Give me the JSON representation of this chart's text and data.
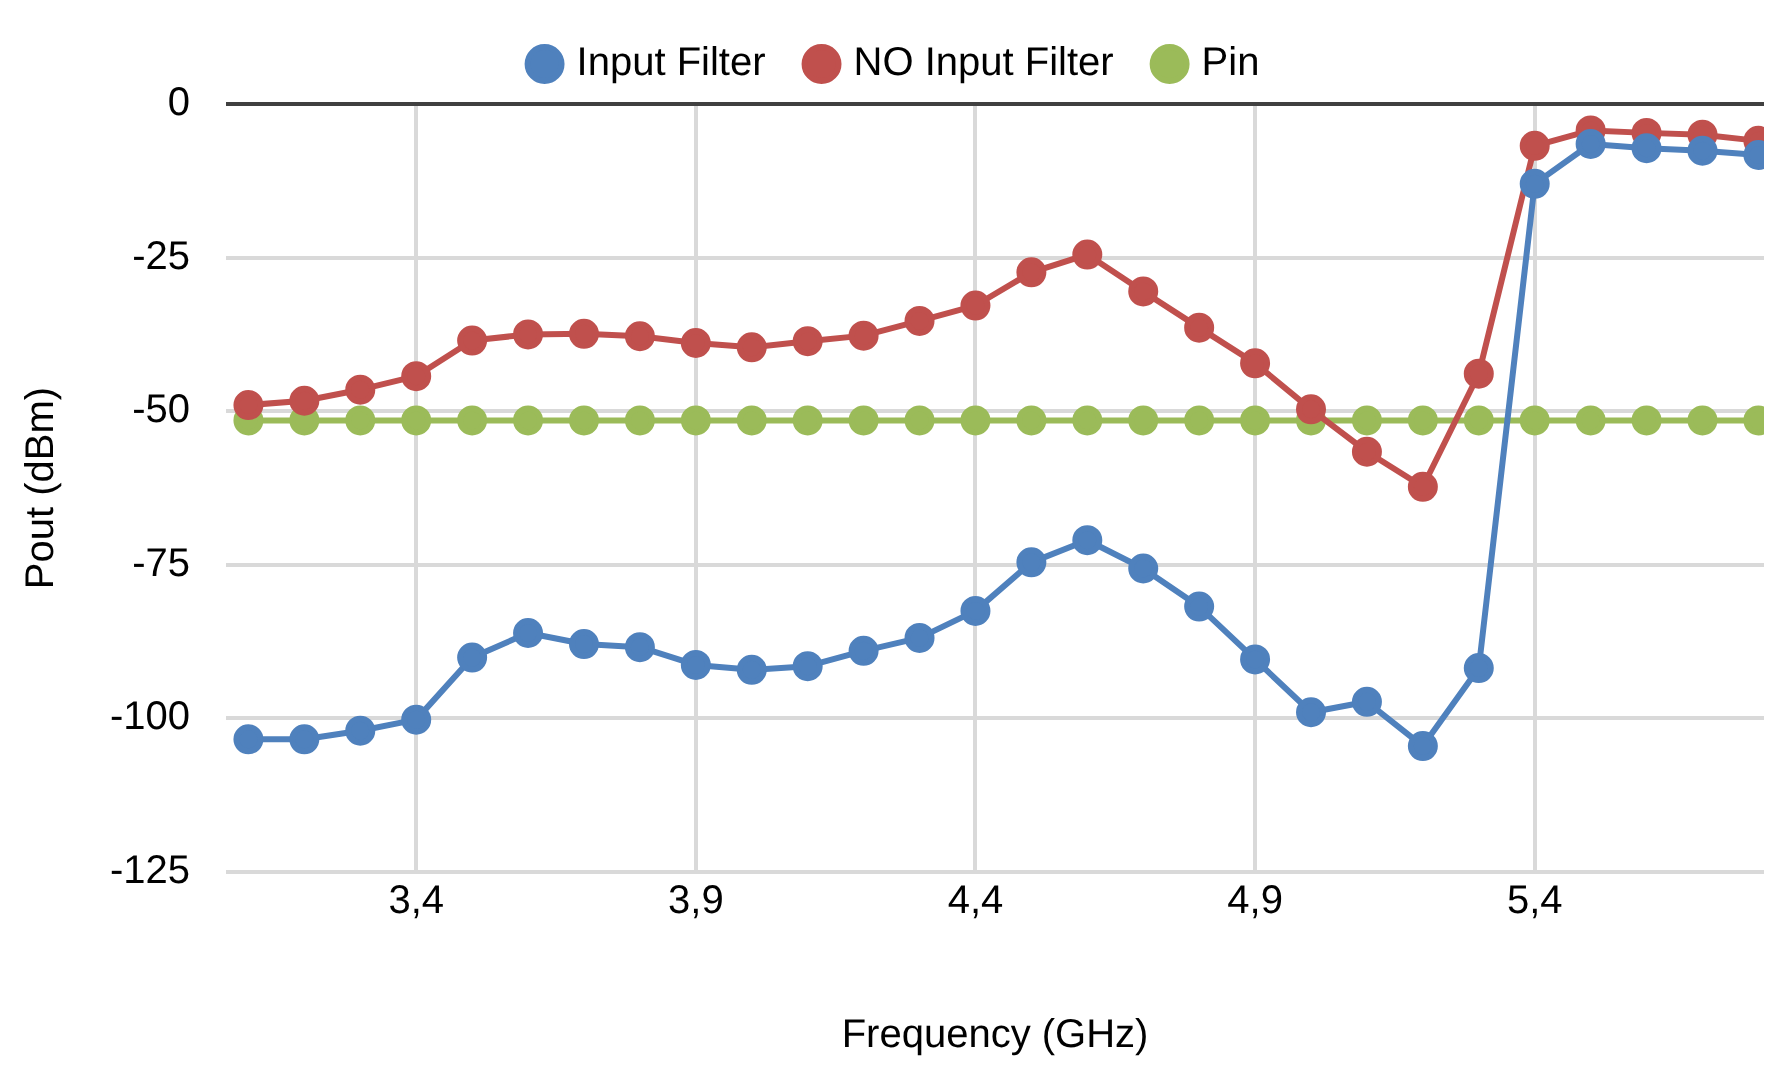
{
  "chart_data": {
    "type": "line",
    "xlabel": "Frequency (GHz)",
    "ylabel": "Pout (dBm)",
    "x": [
      3.1,
      3.2,
      3.3,
      3.4,
      3.5,
      3.6,
      3.7,
      3.8,
      3.9,
      4.0,
      4.1,
      4.2,
      4.3,
      4.4,
      4.5,
      4.6,
      4.7,
      4.8,
      4.9,
      5.0,
      5.1,
      5.2,
      5.3,
      5.4,
      5.5,
      5.6,
      5.7,
      5.8
    ],
    "series": [
      {
        "name": "Input Filter",
        "color": "#4f81bd",
        "values": [
          -103.4,
          -103.4,
          -102,
          -100.2,
          -90.1,
          -86.1,
          -87.9,
          -88.4,
          -91.3,
          -92.1,
          -91.5,
          -89,
          -86.9,
          -82.5,
          -74.6,
          -71,
          -75.6,
          -81.8,
          -90.4,
          -99,
          -97.3,
          -104.5,
          -91.8,
          -13,
          -6.5,
          -7.2,
          -7.6,
          -8.3
        ]
      },
      {
        "name": "NO Input Filter",
        "color": "#c0504d",
        "values": [
          -49,
          -48.3,
          -46.5,
          -44.3,
          -38.5,
          -37.5,
          -37.4,
          -37.8,
          -38.9,
          -39.6,
          -38.6,
          -37.7,
          -35.3,
          -32.8,
          -27.4,
          -24.5,
          -30.5,
          -36.4,
          -42.2,
          -49.7,
          -56.6,
          -62.3,
          -43.9,
          -6.8,
          -4.3,
          -4.7,
          -5,
          -6
        ]
      },
      {
        "name": "Pin",
        "color": "#9bbb59",
        "values": [
          -51.5,
          -51.5,
          -51.5,
          -51.5,
          -51.5,
          -51.5,
          -51.5,
          -51.5,
          -51.5,
          -51.5,
          -51.5,
          -51.5,
          -51.5,
          -51.5,
          -51.5,
          -51.5,
          -51.5,
          -51.5,
          -51.5,
          -51.5,
          -51.5,
          -51.5,
          -51.5,
          -51.5,
          -51.5,
          -51.5,
          -51.5,
          -51.5
        ]
      }
    ],
    "xlim": [
      3.06,
      5.81
    ],
    "xticks": [
      {
        "value": 3.4,
        "label": "3,4"
      },
      {
        "value": 3.9,
        "label": "3,9"
      },
      {
        "value": 4.4,
        "label": "4,4"
      },
      {
        "value": 4.9,
        "label": "4,9"
      },
      {
        "value": 5.4,
        "label": "5,4"
      }
    ],
    "ylim": [
      -125,
      0
    ],
    "yticks": [
      0,
      -25,
      -50,
      -75,
      -100,
      -125
    ],
    "grid": true,
    "legend": "top",
    "marker": "circle",
    "line_style": "solid"
  }
}
